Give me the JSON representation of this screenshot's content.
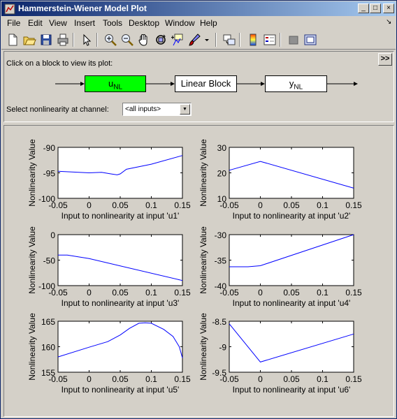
{
  "window": {
    "title": "Hammerstein-Wiener Model Plot",
    "min_glyph": "_",
    "max_glyph": "□",
    "close_glyph": "×"
  },
  "menu": [
    "File",
    "Edit",
    "View",
    "Insert",
    "Tools",
    "Desktop",
    "Window",
    "Help"
  ],
  "menu_dock_glyph": "↘",
  "toolbar_icons": [
    "new-figure-icon",
    "open-icon",
    "save-icon",
    "print-icon",
    "edit-plot-arrow-icon",
    "zoom-in-icon",
    "zoom-out-icon",
    "pan-hand-icon",
    "rotate-3d-icon",
    "data-cursor-icon",
    "brush-icon",
    "brush-dropdown-icon",
    "link-plot-icon",
    "colorbar-icon",
    "legend-icon",
    "hide-plot-tools-icon",
    "show-plot-tools-icon"
  ],
  "panel": {
    "instruction": "Click on a block to view its plot:",
    "expand_label": ">>",
    "blocks": {
      "input_main": "u",
      "input_sub": "NL",
      "linear": "Linear Block",
      "output_main": "y",
      "output_sub": "NL"
    },
    "selected_block_color": "#00ff00",
    "select_label": "Select nonlinearity at channel:",
    "select_value": "<all inputs>"
  },
  "chart_data": [
    {
      "type": "line",
      "xlabel": "Input to nonlinearity at input 'u1'",
      "ylabel": "Nonlinearity Value",
      "xlim": [
        -0.05,
        0.15
      ],
      "ylim": [
        -100,
        -90
      ],
      "xticks": [
        "-0.05",
        "0",
        "0.05",
        "0.1",
        "0.15"
      ],
      "yticks": [
        "-90",
        "-95",
        "-100"
      ],
      "x": [
        -0.05,
        0.0,
        0.02,
        0.035,
        0.045,
        0.05,
        0.06,
        0.1,
        0.15
      ],
      "y": [
        -94.7,
        -95.0,
        -94.9,
        -95.2,
        -95.4,
        -95.2,
        -94.3,
        -93.3,
        -91.6
      ],
      "color": "#0000ff"
    },
    {
      "type": "line",
      "xlabel": "Input to nonlinearity at input 'u2'",
      "ylabel": "Nonlinearity Value",
      "xlim": [
        -0.05,
        0.15
      ],
      "ylim": [
        10,
        30
      ],
      "xticks": [
        "-0.05",
        "0",
        "0.05",
        "0.1",
        "0.15"
      ],
      "yticks": [
        "30",
        "20",
        "10"
      ],
      "x": [
        -0.05,
        0.0,
        0.15
      ],
      "y": [
        21,
        24.5,
        14
      ],
      "color": "#0000ff"
    },
    {
      "type": "line",
      "xlabel": "Input to nonlinearity at input 'u3'",
      "ylabel": "Nonlinearity Value",
      "xlim": [
        -0.05,
        0.15
      ],
      "ylim": [
        -100,
        0
      ],
      "xticks": [
        "-0.05",
        "0",
        "0.05",
        "0.1",
        "0.15"
      ],
      "yticks": [
        "0",
        "-50",
        "-100"
      ],
      "x": [
        -0.05,
        -0.035,
        0.0,
        0.15
      ],
      "y": [
        -40,
        -40,
        -47,
        -90
      ],
      "color": "#0000ff"
    },
    {
      "type": "line",
      "xlabel": "Input to nonlinearity at input 'u4'",
      "ylabel": "Nonlinearity Value",
      "xlim": [
        -0.05,
        0.15
      ],
      "ylim": [
        -40,
        -30
      ],
      "xticks": [
        "-0.05",
        "0",
        "0.05",
        "0.1",
        "0.15"
      ],
      "yticks": [
        "-30",
        "-35",
        "-40"
      ],
      "x": [
        -0.05,
        -0.02,
        0.0,
        0.15
      ],
      "y": [
        -36.3,
        -36.3,
        -36.1,
        -30.0
      ],
      "color": "#0000ff"
    },
    {
      "type": "line",
      "xlabel": "Input to nonlinearity at input 'u5'",
      "ylabel": "Nonlinearity Value",
      "xlim": [
        -0.05,
        0.15
      ],
      "ylim": [
        155,
        165
      ],
      "xticks": [
        "-0.05",
        "0",
        "0.05",
        "0.1",
        "0.15"
      ],
      "yticks": [
        "165",
        "160",
        "155"
      ],
      "x": [
        -0.05,
        0.0,
        0.03,
        0.05,
        0.065,
        0.08,
        0.09,
        0.1,
        0.12,
        0.135,
        0.145,
        0.15
      ],
      "y": [
        158.0,
        159.9,
        161.0,
        162.3,
        163.6,
        164.6,
        164.7,
        164.6,
        163.4,
        162.0,
        160.0,
        157.8
      ],
      "color": "#0000ff"
    },
    {
      "type": "line",
      "xlabel": "Input to nonlinearity at input 'u6'",
      "ylabel": "Nonlinearity Value",
      "xlim": [
        -0.05,
        0.15
      ],
      "ylim": [
        -9.5,
        -8.5
      ],
      "xticks": [
        "-0.05",
        "0",
        "0.05",
        "0.1",
        "0.15"
      ],
      "yticks": [
        "-8.5",
        "-9",
        "-9.5"
      ],
      "x": [
        -0.05,
        0.0,
        0.15
      ],
      "y": [
        -8.55,
        -9.3,
        -8.75
      ],
      "color": "#0000ff"
    }
  ]
}
